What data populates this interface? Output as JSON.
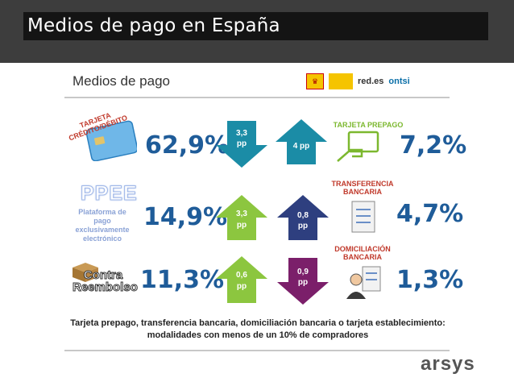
{
  "header": {
    "title": "Medios de pago en España"
  },
  "slide": {
    "title": "Medios de pago",
    "logos": {
      "redes": "red.es",
      "ontsi": "ontsi"
    }
  },
  "rows": [
    {
      "left_label": "TARJETA CRÉDITO/DÉBITO",
      "left_pct": "62,9%",
      "left_arrow": {
        "dir": "down",
        "color": "#1b8ca6",
        "text": "3,3 pp"
      },
      "right_label": "TARJETA PREPAGO",
      "right_pct": "7,2%",
      "right_arrow": {
        "dir": "up",
        "color": "#1b8ca6",
        "text": "4 pp"
      }
    },
    {
      "left_label": "PPEE",
      "left_desc": "Plataforma de pago exclusivamente electrónico",
      "left_pct": "14,9%",
      "left_arrow": {
        "dir": "up",
        "color": "#8cc63f",
        "text": "3,3 pp"
      },
      "right_label": "TRANSFERENCIA BANCARIA",
      "right_pct": "4,7%",
      "right_arrow": {
        "dir": "up",
        "color": "#2e3f7f",
        "text": "0,8 pp"
      }
    },
    {
      "left_label": "Contra Reembolso",
      "left_pct": "11,3%",
      "left_arrow": {
        "dir": "up",
        "color": "#8cc63f",
        "text": "0,6 pp"
      },
      "right_label": "DOMICILIACIÓN BANCARIA",
      "right_pct": "1,3%",
      "right_arrow": {
        "dir": "down",
        "color": "#7b1f6a",
        "text": "0,9 pp"
      }
    }
  ],
  "footer": {
    "line1": "Tarjeta prepago, transferencia bancaria, domiciliación bancaria o tarjeta establecimiento:",
    "line2": "modalidades con menos de un 10% de compradores"
  },
  "brand": "arsys"
}
